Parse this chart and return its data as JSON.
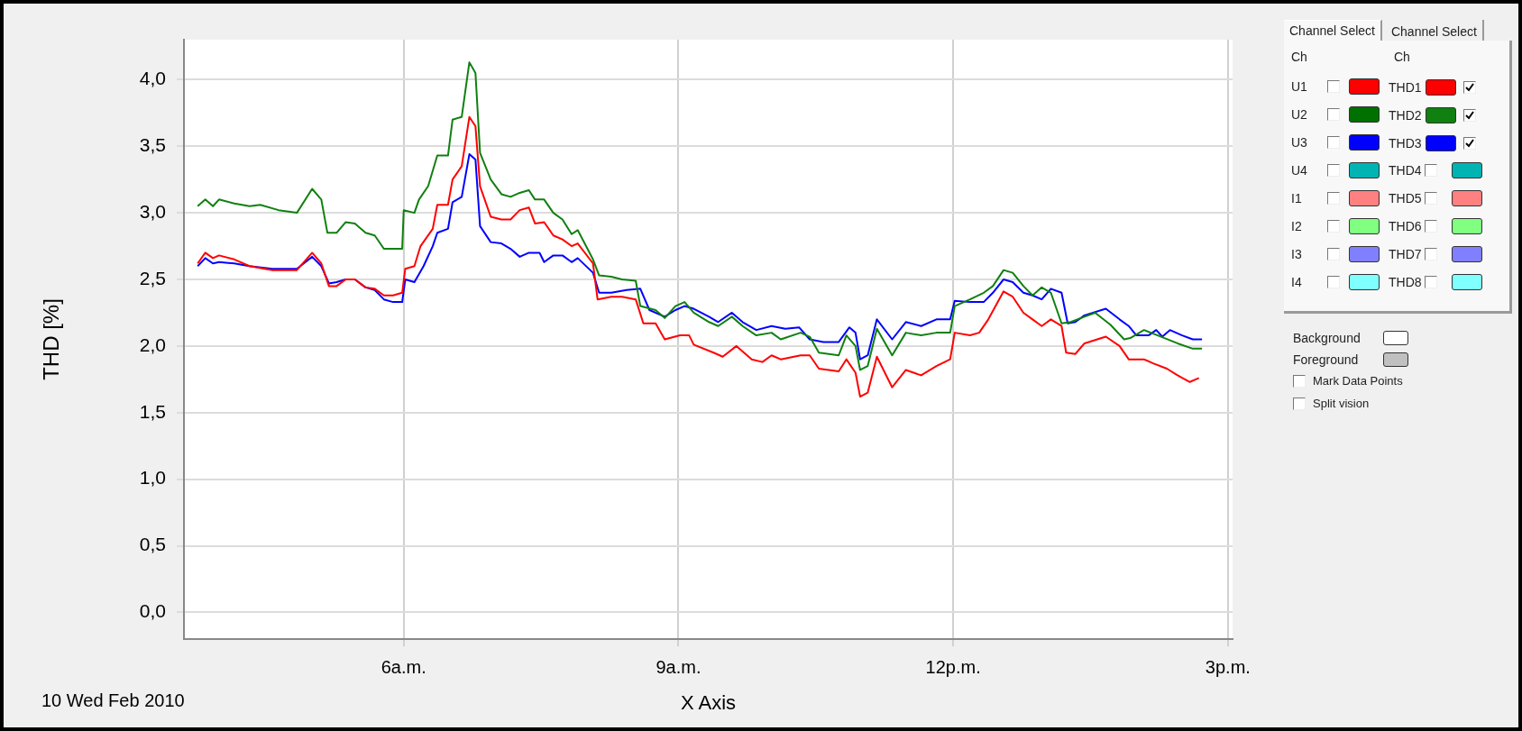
{
  "chart_data": [
    {
      "type": "line",
      "ylabel": "THD [%]",
      "xlabel": "X Axis",
      "annotations": [
        "10 Wed Feb 2010"
      ],
      "xlim": [
        "2010-02-10T03:36",
        "2010-02-10T15:03"
      ],
      "xticks": [
        {
          "value": "2010-02-10T06:00",
          "label": "6a.m."
        },
        {
          "value": "2010-02-10T09:00",
          "label": "9a.m."
        },
        {
          "value": "2010-02-10T12:00",
          "label": "12p.m."
        },
        {
          "value": "2010-02-10T15:00",
          "label": "3p.m."
        }
      ],
      "ylim": [
        -0.2,
        4.3
      ],
      "yticks": [
        {
          "value": 0,
          "label": "0,0"
        },
        {
          "value": 0.5,
          "label": "0,5"
        },
        {
          "value": 1,
          "label": "1,0"
        },
        {
          "value": 1.5,
          "label": "1,5"
        },
        {
          "value": 2,
          "label": "2,0"
        },
        {
          "value": 2.5,
          "label": "2,5"
        },
        {
          "value": 3,
          "label": "3,0"
        },
        {
          "value": 3.5,
          "label": "3,5"
        },
        {
          "value": 4,
          "label": "4,0"
        }
      ],
      "grid": true,
      "legend": "right",
      "marker": "none",
      "line_style": "solid",
      "series": [
        {
          "name": "THD1",
          "color": "#ff0000",
          "x": [
            "2010-02-10T03:45",
            "2010-02-10T03:50",
            "2010-02-10T03:55",
            "2010-02-10T03:59",
            "2010-02-10T04:09",
            "2010-02-10T04:19",
            "2010-02-10T04:34",
            "2010-02-10T04:50",
            "2010-02-10T05:00",
            "2010-02-10T05:06",
            "2010-02-10T05:11",
            "2010-02-10T05:16",
            "2010-02-10T05:22",
            "2010-02-10T05:28",
            "2010-02-10T05:35",
            "2010-02-10T05:41",
            "2010-02-10T05:47",
            "2010-02-10T05:53",
            "2010-02-10T05:59",
            "2010-02-10T06:01",
            "2010-02-10T06:07",
            "2010-02-10T06:11",
            "2010-02-10T06:19",
            "2010-02-10T06:22",
            "2010-02-10T06:29",
            "2010-02-10T06:32",
            "2010-02-10T06:38",
            "2010-02-10T06:43",
            "2010-02-10T06:47",
            "2010-02-10T06:50",
            "2010-02-10T06:57",
            "2010-02-10T07:04",
            "2010-02-10T07:10",
            "2010-02-10T07:16",
            "2010-02-10T07:22",
            "2010-02-10T07:26",
            "2010-02-10T07:32",
            "2010-02-10T07:38",
            "2010-02-10T07:44",
            "2010-02-10T07:50",
            "2010-02-10T07:54",
            "2010-02-10T08:04",
            "2010-02-10T08:07",
            "2010-02-10T08:16",
            "2010-02-10T08:23",
            "2010-02-10T08:32",
            "2010-02-10T08:37",
            "2010-02-10T08:45",
            "2010-02-10T08:51",
            "2010-02-10T09:01",
            "2010-02-10T09:07",
            "2010-02-10T09:10",
            "2010-02-10T09:23",
            "2010-02-10T09:29",
            "2010-02-10T09:38",
            "2010-02-10T09:48",
            "2010-02-10T09:55",
            "2010-02-10T10:01",
            "2010-02-10T10:07",
            "2010-02-10T10:20",
            "2010-02-10T10:26",
            "2010-02-10T10:32",
            "2010-02-10T10:45",
            "2010-02-10T10:50",
            "2010-02-10T10:56",
            "2010-02-10T10:59",
            "2010-02-10T11:04",
            "2010-02-10T11:10",
            "2010-02-10T11:20",
            "2010-02-10T11:29",
            "2010-02-10T11:39",
            "2010-02-10T11:49",
            "2010-02-10T11:58",
            "2010-02-10T12:01",
            "2010-02-10T12:11",
            "2010-02-10T12:17",
            "2010-02-10T12:23",
            "2010-02-10T12:33",
            "2010-02-10T12:39",
            "2010-02-10T12:46",
            "2010-02-10T12:52",
            "2010-02-10T12:58",
            "2010-02-10T13:04",
            "2010-02-10T13:11",
            "2010-02-10T13:14",
            "2010-02-10T13:20",
            "2010-02-10T13:26",
            "2010-02-10T13:40",
            "2010-02-10T13:49",
            "2010-02-10T13:55",
            "2010-02-10T14:05",
            "2010-02-10T14:11",
            "2010-02-10T14:20",
            "2010-02-10T14:27",
            "2010-02-10T14:35",
            "2010-02-10T14:41"
          ],
          "values": [
            2.62,
            2.7,
            2.66,
            2.68,
            2.65,
            2.6,
            2.57,
            2.57,
            2.7,
            2.62,
            2.45,
            2.45,
            2.5,
            2.5,
            2.44,
            2.43,
            2.38,
            2.38,
            2.4,
            2.58,
            2.6,
            2.75,
            2.88,
            3.06,
            3.06,
            3.25,
            3.35,
            3.72,
            3.65,
            3.2,
            2.97,
            2.95,
            2.95,
            3.02,
            3.04,
            2.92,
            2.93,
            2.83,
            2.8,
            2.75,
            2.77,
            2.62,
            2.35,
            2.37,
            2.37,
            2.35,
            2.17,
            2.17,
            2.05,
            2.08,
            2.08,
            2.01,
            1.95,
            1.92,
            2.0,
            1.9,
            1.88,
            1.93,
            1.9,
            1.93,
            1.93,
            1.83,
            1.81,
            1.9,
            1.8,
            1.62,
            1.65,
            1.92,
            1.69,
            1.82,
            1.78,
            1.85,
            1.9,
            2.1,
            2.08,
            2.1,
            2.2,
            2.41,
            2.37,
            2.25,
            2.2,
            2.15,
            2.2,
            2.15,
            1.95,
            1.94,
            2.02,
            2.07,
            2.0,
            1.9,
            1.9,
            1.87,
            1.83,
            1.78,
            1.73,
            1.76
          ]
        },
        {
          "name": "THD2",
          "color": "#108010",
          "x": [
            "2010-02-10T03:45",
            "2010-02-10T03:50",
            "2010-02-10T03:55",
            "2010-02-10T03:59",
            "2010-02-10T04:09",
            "2010-02-10T04:19",
            "2010-02-10T04:26",
            "2010-02-10T04:38",
            "2010-02-10T04:50",
            "2010-02-10T05:00",
            "2010-02-10T05:06",
            "2010-02-10T05:10",
            "2010-02-10T05:16",
            "2010-02-10T05:22",
            "2010-02-10T05:28",
            "2010-02-10T05:35",
            "2010-02-10T05:41",
            "2010-02-10T05:47",
            "2010-02-10T05:53",
            "2010-02-10T05:59",
            "2010-02-10T06:00",
            "2010-02-10T06:07",
            "2010-02-10T06:10",
            "2010-02-10T06:16",
            "2010-02-10T06:22",
            "2010-02-10T06:29",
            "2010-02-10T06:32",
            "2010-02-10T06:38",
            "2010-02-10T06:43",
            "2010-02-10T06:47",
            "2010-02-10T06:50",
            "2010-02-10T06:57",
            "2010-02-10T07:04",
            "2010-02-10T07:10",
            "2010-02-10T07:16",
            "2010-02-10T07:22",
            "2010-02-10T07:26",
            "2010-02-10T07:32",
            "2010-02-10T07:38",
            "2010-02-10T07:44",
            "2010-02-10T07:50",
            "2010-02-10T07:54",
            "2010-02-10T08:04",
            "2010-02-10T08:08",
            "2010-02-10T08:16",
            "2010-02-10T08:23",
            "2010-02-10T08:32",
            "2010-02-10T08:35",
            "2010-02-10T08:45",
            "2010-02-10T08:51",
            "2010-02-10T08:58",
            "2010-02-10T09:04",
            "2010-02-10T09:10",
            "2010-02-10T09:20",
            "2010-02-10T09:26",
            "2010-02-10T09:35",
            "2010-02-10T09:42",
            "2010-02-10T09:51",
            "2010-02-10T10:01",
            "2010-02-10T10:07",
            "2010-02-10T10:20",
            "2010-02-10T10:26",
            "2010-02-10T10:32",
            "2010-02-10T10:45",
            "2010-02-10T10:50",
            "2010-02-10T10:56",
            "2010-02-10T10:59",
            "2010-02-10T11:04",
            "2010-02-10T11:10",
            "2010-02-10T11:20",
            "2010-02-10T11:29",
            "2010-02-10T11:39",
            "2010-02-10T11:49",
            "2010-02-10T11:58",
            "2010-02-10T12:01",
            "2010-02-10T12:11",
            "2010-02-10T12:20",
            "2010-02-10T12:26",
            "2010-02-10T12:33",
            "2010-02-10T12:39",
            "2010-02-10T12:46",
            "2010-02-10T12:52",
            "2010-02-10T12:58",
            "2010-02-10T13:04",
            "2010-02-10T13:11",
            "2010-02-10T13:17",
            "2010-02-10T13:26",
            "2010-02-10T13:33",
            "2010-02-10T13:43",
            "2010-02-10T13:52",
            "2010-02-10T13:56",
            "2010-02-10T14:05",
            "2010-02-10T14:14",
            "2010-02-10T14:27",
            "2010-02-10T14:37",
            "2010-02-10T14:43"
          ],
          "values": [
            3.05,
            3.1,
            3.05,
            3.1,
            3.07,
            3.05,
            3.06,
            3.02,
            3.0,
            3.18,
            3.1,
            2.85,
            2.85,
            2.93,
            2.92,
            2.85,
            2.83,
            2.73,
            2.73,
            2.73,
            3.02,
            3.0,
            3.1,
            3.2,
            3.43,
            3.43,
            3.7,
            3.72,
            4.13,
            4.05,
            3.45,
            3.25,
            3.14,
            3.12,
            3.15,
            3.17,
            3.1,
            3.1,
            3.0,
            2.95,
            2.84,
            2.87,
            2.65,
            2.53,
            2.52,
            2.5,
            2.49,
            2.3,
            2.27,
            2.21,
            2.3,
            2.33,
            2.25,
            2.18,
            2.15,
            2.22,
            2.15,
            2.08,
            2.1,
            2.05,
            2.1,
            2.07,
            1.95,
            1.93,
            2.08,
            2.0,
            1.82,
            1.85,
            2.13,
            1.93,
            2.1,
            2.08,
            2.1,
            2.1,
            2.3,
            2.35,
            2.4,
            2.45,
            2.57,
            2.55,
            2.45,
            2.38,
            2.44,
            2.4,
            2.17,
            2.18,
            2.22,
            2.25,
            2.16,
            2.05,
            2.06,
            2.12,
            2.08,
            2.02,
            1.98,
            1.98
          ]
        },
        {
          "name": "THD3",
          "color": "#0000ff",
          "x": [
            "2010-02-10T03:45",
            "2010-02-10T03:50",
            "2010-02-10T03:55",
            "2010-02-10T03:59",
            "2010-02-10T04:09",
            "2010-02-10T04:19",
            "2010-02-10T04:34",
            "2010-02-10T04:50",
            "2010-02-10T05:00",
            "2010-02-10T05:06",
            "2010-02-10T05:11",
            "2010-02-10T05:16",
            "2010-02-10T05:22",
            "2010-02-10T05:28",
            "2010-02-10T05:35",
            "2010-02-10T05:41",
            "2010-02-10T05:47",
            "2010-02-10T05:53",
            "2010-02-10T05:59",
            "2010-02-10T06:01",
            "2010-02-10T06:07",
            "2010-02-10T06:13",
            "2010-02-10T06:19",
            "2010-02-10T06:22",
            "2010-02-10T06:29",
            "2010-02-10T06:32",
            "2010-02-10T06:38",
            "2010-02-10T06:43",
            "2010-02-10T06:47",
            "2010-02-10T06:50",
            "2010-02-10T06:57",
            "2010-02-10T07:04",
            "2010-02-10T07:10",
            "2010-02-10T07:16",
            "2010-02-10T07:22",
            "2010-02-10T07:29",
            "2010-02-10T07:32",
            "2010-02-10T07:38",
            "2010-02-10T07:44",
            "2010-02-10T07:50",
            "2010-02-10T07:54",
            "2010-02-10T08:04",
            "2010-02-10T08:08",
            "2010-02-10T08:16",
            "2010-02-10T08:26",
            "2010-02-10T08:35",
            "2010-02-10T08:41",
            "2010-02-10T08:51",
            "2010-02-10T08:58",
            "2010-02-10T09:04",
            "2010-02-10T09:10",
            "2010-02-10T09:20",
            "2010-02-10T09:26",
            "2010-02-10T09:35",
            "2010-02-10T09:42",
            "2010-02-10T09:51",
            "2010-02-10T10:01",
            "2010-02-10T10:10",
            "2010-02-10T10:19",
            "2010-02-10T10:26",
            "2010-02-10T10:35",
            "2010-02-10T10:45",
            "2010-02-10T10:52",
            "2010-02-10T10:56",
            "2010-02-10T10:59",
            "2010-02-10T11:04",
            "2010-02-10T11:10",
            "2010-02-10T11:20",
            "2010-02-10T11:29",
            "2010-02-10T11:39",
            "2010-02-10T11:49",
            "2010-02-10T11:58",
            "2010-02-10T12:01",
            "2010-02-10T12:11",
            "2010-02-10T12:20",
            "2010-02-10T12:26",
            "2010-02-10T12:33",
            "2010-02-10T12:39",
            "2010-02-10T12:46",
            "2010-02-10T12:52",
            "2010-02-10T12:58",
            "2010-02-10T13:04",
            "2010-02-10T13:11",
            "2010-02-10T13:15",
            "2010-02-10T13:20",
            "2010-02-10T13:26",
            "2010-02-10T13:40",
            "2010-02-10T13:49",
            "2010-02-10T13:55",
            "2010-02-10T14:00",
            "2010-02-10T14:08",
            "2010-02-10T14:13",
            "2010-02-10T14:17",
            "2010-02-10T14:22",
            "2010-02-10T14:30",
            "2010-02-10T14:37",
            "2010-02-10T14:43"
          ],
          "values": [
            2.6,
            2.66,
            2.62,
            2.63,
            2.62,
            2.6,
            2.58,
            2.58,
            2.67,
            2.6,
            2.47,
            2.48,
            2.5,
            2.5,
            2.44,
            2.42,
            2.35,
            2.33,
            2.33,
            2.5,
            2.48,
            2.6,
            2.75,
            2.85,
            2.88,
            3.08,
            3.12,
            3.44,
            3.4,
            2.9,
            2.78,
            2.77,
            2.73,
            2.67,
            2.7,
            2.7,
            2.63,
            2.68,
            2.68,
            2.63,
            2.66,
            2.55,
            2.4,
            2.4,
            2.42,
            2.43,
            2.27,
            2.22,
            2.27,
            2.3,
            2.28,
            2.22,
            2.18,
            2.25,
            2.18,
            2.12,
            2.15,
            2.13,
            2.14,
            2.05,
            2.03,
            2.03,
            2.14,
            2.1,
            1.9,
            1.93,
            2.2,
            2.05,
            2.18,
            2.15,
            2.2,
            2.2,
            2.34,
            2.33,
            2.33,
            2.4,
            2.5,
            2.48,
            2.4,
            2.38,
            2.35,
            2.43,
            2.4,
            2.17,
            2.18,
            2.23,
            2.28,
            2.2,
            2.15,
            2.08,
            2.08,
            2.12,
            2.07,
            2.12,
            2.08,
            2.05,
            2.05
          ]
        }
      ]
    },
    {
      "type": "other",
      "annotations": [
        "Channel Select",
        "Channel Select",
        "Ch",
        "Ch",
        "U1",
        "U2",
        "U3",
        "U4",
        "I1",
        "I2",
        "I3",
        "I4",
        "THD4",
        "THD5",
        "THD6",
        "THD7",
        "THD8",
        "Background",
        "Foreground",
        "Mark Data Points",
        "Split vision"
      ]
    }
  ]
}
